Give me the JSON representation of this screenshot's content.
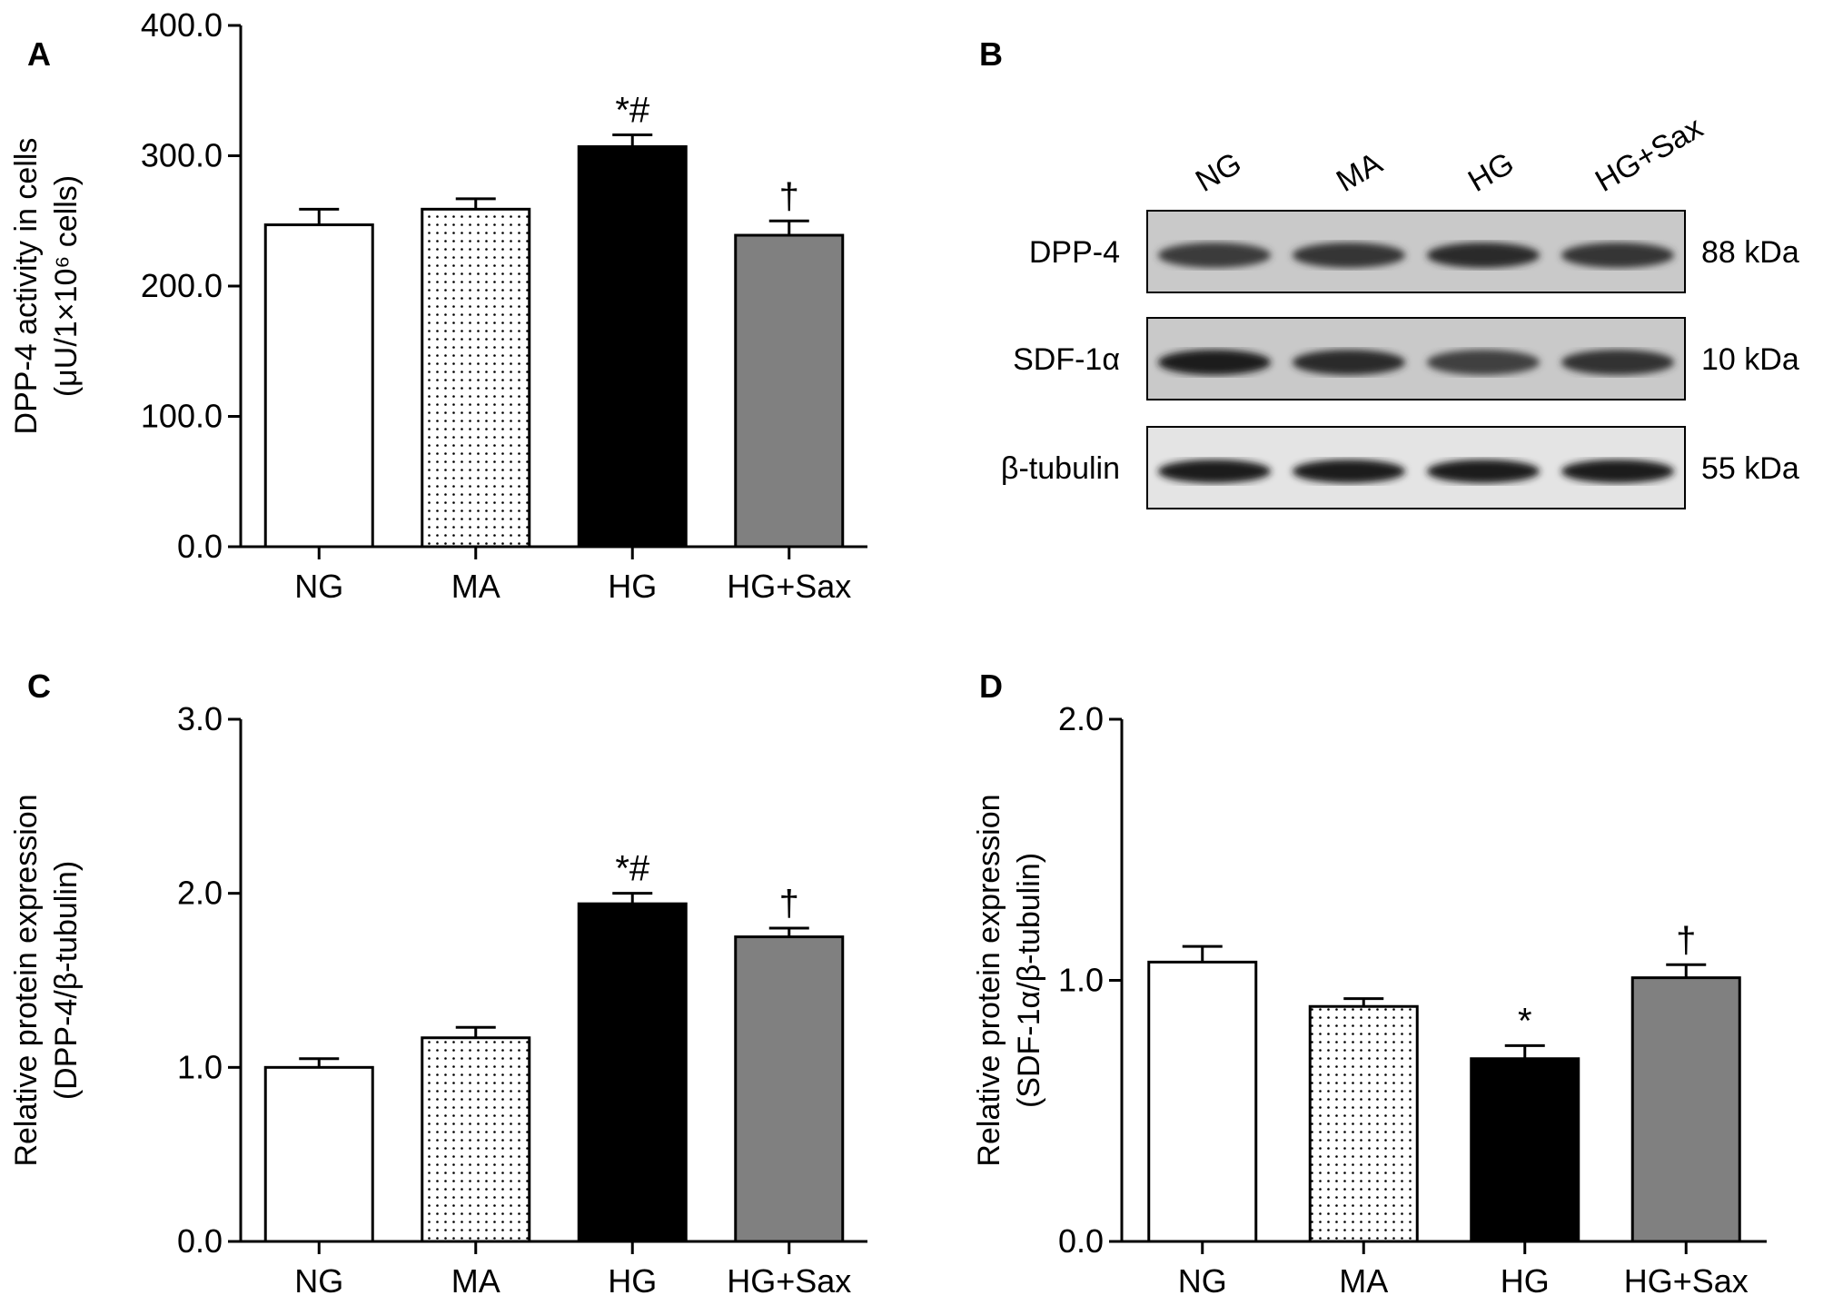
{
  "colors": {
    "NG": "#ffffff",
    "MA": "#f2f2f2",
    "HG": "#000000",
    "HG+Sax": "#808080",
    "axis": "#000000"
  },
  "chart_data": [
    {
      "panel": "A",
      "type": "bar",
      "categories": [
        "NG",
        "MA",
        "HG",
        "HG+Sax"
      ],
      "values": [
        247,
        259,
        307,
        239
      ],
      "errors": [
        12,
        8,
        9,
        11
      ],
      "annotations": [
        "",
        "",
        "*#",
        "†"
      ],
      "ylabel": [
        "DPP-4 activity in cells",
        "(μU/1×10⁶ cells)"
      ],
      "ylim": [
        0,
        400
      ],
      "yticks": [
        "0.0",
        "100.0",
        "200.0",
        "300.0",
        "400.0"
      ],
      "grid": false
    },
    {
      "panel": "C",
      "type": "bar",
      "categories": [
        "NG",
        "MA",
        "HG",
        "HG+Sax"
      ],
      "values": [
        1.0,
        1.17,
        1.94,
        1.75
      ],
      "errors": [
        0.05,
        0.06,
        0.06,
        0.05
      ],
      "annotations": [
        "",
        "",
        "*#",
        "†"
      ],
      "ylabel": [
        "Relative protein expression",
        "(DPP-4/β-tubulin)"
      ],
      "ylim": [
        0,
        3
      ],
      "yticks": [
        "0.0",
        "1.0",
        "2.0",
        "3.0"
      ],
      "grid": false
    },
    {
      "panel": "D",
      "type": "bar",
      "categories": [
        "NG",
        "MA",
        "HG",
        "HG+Sax"
      ],
      "values": [
        1.07,
        0.9,
        0.7,
        1.01
      ],
      "errors": [
        0.06,
        0.03,
        0.05,
        0.05
      ],
      "annotations": [
        "",
        "",
        "*",
        "†"
      ],
      "ylabel": [
        "Relative protein expression",
        "(SDF-1α/β-tubulin)"
      ],
      "ylim": [
        0,
        2
      ],
      "yticks": [
        "0.0",
        "1.0",
        "2.0"
      ],
      "grid": false
    }
  ],
  "blot": {
    "panel": "B",
    "lanes": [
      "NG",
      "MA",
      "HG",
      "HG+Sax"
    ],
    "rows": [
      {
        "protein": "DPP-4",
        "size": "88 kDa",
        "intensity": [
          0.55,
          0.6,
          0.7,
          0.6
        ]
      },
      {
        "protein": "SDF-1α",
        "size": "10 kDa",
        "intensity": [
          0.85,
          0.7,
          0.5,
          0.65
        ]
      },
      {
        "protein": "β-tubulin",
        "size": "55 kDa",
        "intensity": [
          0.85,
          0.85,
          0.85,
          0.85
        ]
      }
    ]
  }
}
